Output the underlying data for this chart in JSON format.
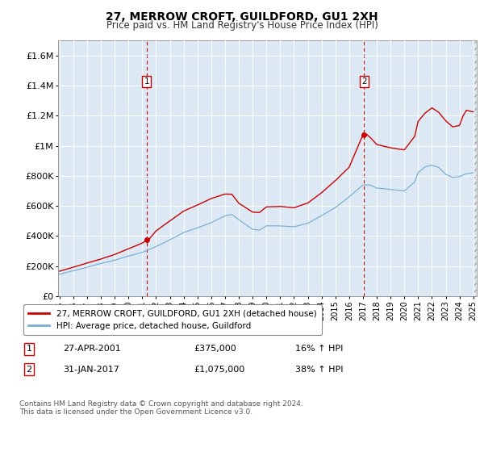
{
  "title": "27, MERROW CROFT, GUILDFORD, GU1 2XH",
  "subtitle": "Price paid vs. HM Land Registry's House Price Index (HPI)",
  "ylabel_ticks": [
    "£0",
    "£200K",
    "£400K",
    "£600K",
    "£800K",
    "£1M",
    "£1.2M",
    "£1.4M",
    "£1.6M"
  ],
  "ytick_values": [
    0,
    200000,
    400000,
    600000,
    800000,
    1000000,
    1200000,
    1400000,
    1600000
  ],
  "ylim": [
    0,
    1700000
  ],
  "xlim_start": 1995.0,
  "xlim_end": 2025.25,
  "background_color": "#dce9f5",
  "line1_color": "#cc0000",
  "line2_color": "#7ab0d4",
  "purchase1_x": 2001.32,
  "purchase1_y": 375000,
  "purchase2_x": 2017.08,
  "purchase2_y": 1075000,
  "annotation1_label": "1",
  "annotation2_label": "2",
  "vline_color": "#cc0000",
  "legend_line1": "27, MERROW CROFT, GUILDFORD, GU1 2XH (detached house)",
  "legend_line2": "HPI: Average price, detached house, Guildford",
  "table_row1_num": "1",
  "table_row1_date": "27-APR-2001",
  "table_row1_price": "£375,000",
  "table_row1_hpi": "16% ↑ HPI",
  "table_row2_num": "2",
  "table_row2_date": "31-JAN-2017",
  "table_row2_price": "£1,075,000",
  "table_row2_hpi": "38% ↑ HPI",
  "footnote": "Contains HM Land Registry data © Crown copyright and database right 2024.\nThis data is licensed under the Open Government Licence v3.0."
}
